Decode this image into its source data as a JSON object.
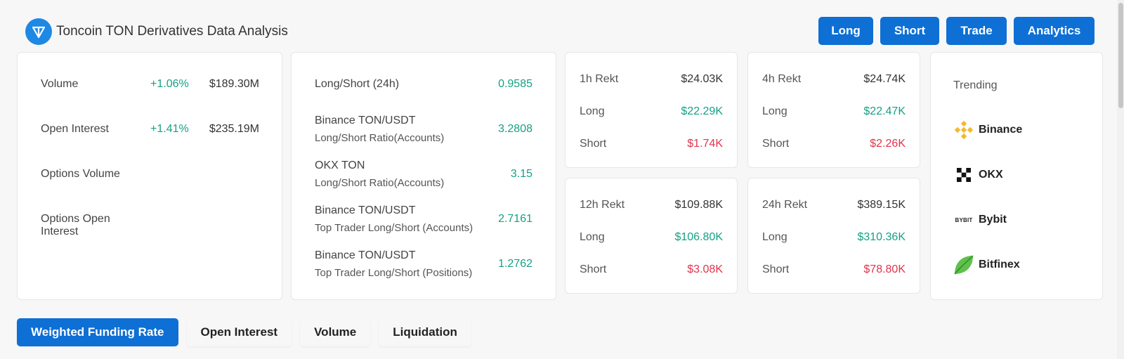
{
  "header": {
    "title": "Toncoin TON Derivatives Data Analysis",
    "logo_icon": "ton-logo-icon",
    "accent": "#1e88e5"
  },
  "top_buttons": [
    "Long",
    "Short",
    "Trade",
    "Analytics"
  ],
  "stats": {
    "rows": [
      {
        "label": "Volume",
        "change": "+1.06%",
        "value": "$189.30M"
      },
      {
        "label": "Open Interest",
        "change": "+1.41%",
        "value": "$235.19M"
      },
      {
        "label": "Options Volume",
        "change": "",
        "value": ""
      },
      {
        "label": "Options Open Interest",
        "change": "",
        "value": ""
      }
    ]
  },
  "ratios": {
    "rows": [
      {
        "line1": "Long/Short (24h)",
        "line2": "",
        "value": "0.9585"
      },
      {
        "line1": "Binance TON/USDT",
        "line2": "Long/Short Ratio(Accounts)",
        "value": "3.2808"
      },
      {
        "line1": "OKX TON",
        "line2": "Long/Short Ratio(Accounts)",
        "value": "3.15"
      },
      {
        "line1": "Binance TON/USDT",
        "line2": "Top Trader Long/Short (Accounts)",
        "value": "2.7161"
      },
      {
        "line1": "Binance TON/USDT",
        "line2": "Top Trader Long/Short (Positions)",
        "value": "1.2762"
      }
    ]
  },
  "rekt": [
    {
      "title": "1h Rekt",
      "total": "$24.03K",
      "long_label": "Long",
      "long": "$22.29K",
      "short_label": "Short",
      "short": "$1.74K"
    },
    {
      "title": "4h Rekt",
      "total": "$24.74K",
      "long_label": "Long",
      "long": "$22.47K",
      "short_label": "Short",
      "short": "$2.26K"
    },
    {
      "title": "12h Rekt",
      "total": "$109.88K",
      "long_label": "Long",
      "long": "$106.80K",
      "short_label": "Short",
      "short": "$3.08K"
    },
    {
      "title": "24h Rekt",
      "total": "$389.15K",
      "long_label": "Long",
      "long": "$310.36K",
      "short_label": "Short",
      "short": "$78.80K"
    }
  ],
  "trending": {
    "title": "Trending",
    "exchanges": [
      {
        "name": "Binance",
        "icon": "binance-icon"
      },
      {
        "name": "OKX",
        "icon": "okx-icon"
      },
      {
        "name": "Bybit",
        "icon": "bybit-icon",
        "icon_text": "BYBIT"
      },
      {
        "name": "Bitfinex",
        "icon": "bitfinex-icon"
      }
    ]
  },
  "tabs": [
    {
      "label": "Weighted Funding Rate",
      "active": true
    },
    {
      "label": "Open Interest",
      "active": false
    },
    {
      "label": "Volume",
      "active": false
    },
    {
      "label": "Liquidation",
      "active": false
    }
  ],
  "colors": {
    "positive": "#16a085",
    "negative": "#e0344b",
    "button": "#0e6fd4"
  }
}
